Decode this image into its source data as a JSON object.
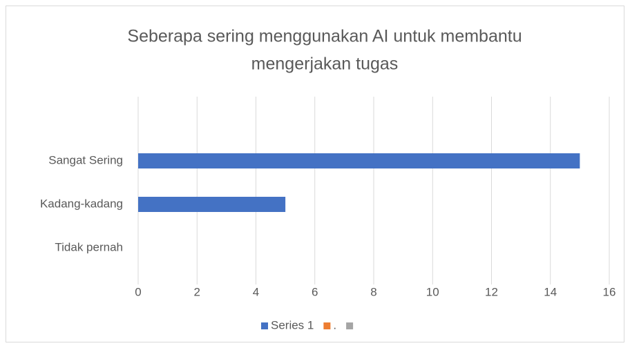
{
  "chart_data": {
    "type": "barh",
    "title": [
      "Seberapa sering menggunakan AI untuk membantu",
      "mengerjakan tugas"
    ],
    "categories": [
      "Tidak pernah",
      "Kadang-kadang",
      "Sangat Sering"
    ],
    "series": [
      {
        "name": "Series 1",
        "color": "#4472c4",
        "values": [
          0,
          5,
          15
        ]
      },
      {
        "name": ".",
        "color": "#ed7d31",
        "values": [
          null,
          null,
          null
        ]
      },
      {
        "name": null,
        "color": "#a5a5a5",
        "values": [
          null,
          null,
          null
        ]
      }
    ],
    "xlim": [
      0,
      16
    ],
    "xticks": [
      0,
      2,
      4,
      6,
      8,
      10,
      12,
      14,
      16
    ],
    "grid": true,
    "legend": "bottom"
  }
}
